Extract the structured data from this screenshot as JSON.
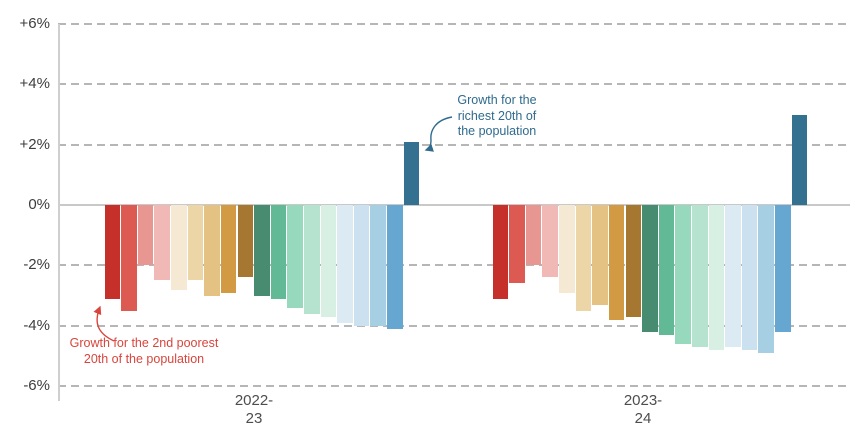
{
  "y_axis": {
    "labels": [
      "+6%",
      "+4%",
      "+2%",
      "0%",
      "-2%",
      "-4%",
      "-6%"
    ],
    "values": [
      6,
      4,
      2,
      0,
      -2,
      -4,
      -6
    ]
  },
  "chart_data": {
    "type": "bar",
    "title": "",
    "xlabel": "",
    "ylabel": "",
    "unit": "%",
    "ylim": [
      -6,
      6
    ],
    "grid": "horizontal dashed gridlines, solid zero line, legend none",
    "bars_per_group": 19,
    "bar_colors": [
      "#c5302a",
      "#dc5a52",
      "#e89691",
      "#f0b9b6",
      "#f6e9d4",
      "#ecd6a8",
      "#e3c284",
      "#d29b43",
      "#a67731",
      "#478b70",
      "#61ba95",
      "#97d9bd",
      "#b5e3d0",
      "#d8f0e4",
      "#dcebf3",
      "#cbe1ef",
      "#a7cfe4",
      "#66a7d1",
      "#34708f"
    ],
    "groups": [
      {
        "label": [
          "2022-",
          "23"
        ],
        "values": [
          -3.1,
          -3.5,
          -2.0,
          -2.5,
          -2.8,
          -2.5,
          -3.0,
          -2.9,
          -2.4,
          -3.0,
          -3.1,
          -3.4,
          -3.6,
          -3.7,
          -3.9,
          -4.0,
          -4.0,
          -4.1,
          2.1
        ]
      },
      {
        "label": [
          "2023-",
          "24"
        ],
        "values": [
          -3.1,
          -2.6,
          -2.0,
          -2.4,
          -2.9,
          -3.5,
          -3.3,
          -3.8,
          -3.7,
          -4.2,
          -4.3,
          -4.6,
          -4.7,
          -4.8,
          -4.7,
          -4.8,
          -4.9,
          -4.2,
          3.0
        ]
      }
    ]
  },
  "annotations": {
    "second_poorest": {
      "lines": [
        "Growth for the 2nd poorest",
        "20th of the population"
      ],
      "color": "#d9453c"
    },
    "richest": {
      "lines": [
        "Growth for the",
        "richest 20th of",
        "the population"
      ],
      "color": "#2f6b8e"
    }
  }
}
